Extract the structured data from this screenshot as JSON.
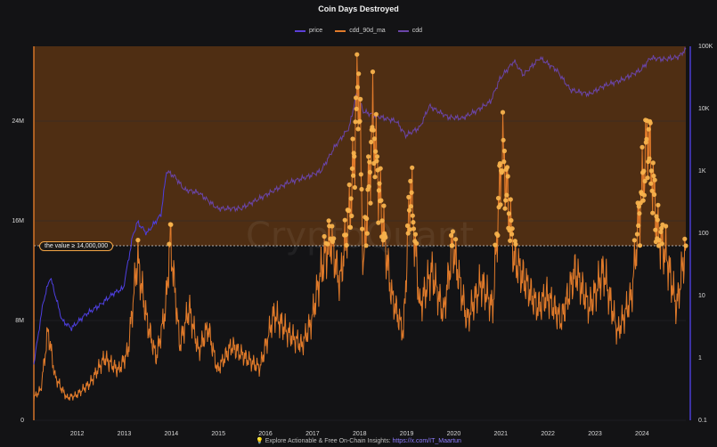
{
  "header": {
    "title": "Coin Days Destroyed"
  },
  "legend": [
    {
      "label": "price",
      "color": "#5b3fd8"
    },
    {
      "label": "cdd_90d_ma",
      "color": "#e07a2a"
    },
    {
      "label": "cdd",
      "color": "#6a45a8"
    }
  ],
  "watermark": "CryptoQuant",
  "threshold_label": "the value ≥ 14,000,000",
  "footer": {
    "icon": "💡",
    "text": "Explore Actionable & Free On-Chain Insights: ",
    "link": "https://x.com/IT_Maartun"
  },
  "colors": {
    "background": "#131315",
    "cdd_line": "#e07a2a",
    "highlight_fill": "#5a3413",
    "highlight_points": "#f7b24c",
    "price_line_early": "#4e3fe0",
    "price_line": "#6a45a8"
  },
  "chart_data": {
    "type": "line",
    "title": "Coin Days Destroyed",
    "x_ticks": [
      "2012",
      "2013",
      "2014",
      "2015",
      "2016",
      "2017",
      "2018",
      "2019",
      "2020",
      "2021",
      "2022",
      "2023",
      "2024"
    ],
    "xlim": [
      2011.1,
      2024.95
    ],
    "left_axis": {
      "ticks": [
        "0",
        "8M",
        "16M",
        "24M"
      ],
      "tick_values": [
        0,
        8000000,
        16000000,
        24000000
      ],
      "ylim": [
        0,
        30000000
      ]
    },
    "right_axis": {
      "scale": "log",
      "ticks": [
        "0.1",
        "1",
        "10",
        "100",
        "1K",
        "10K",
        "100K"
      ],
      "tick_values": [
        0.1,
        1,
        10,
        100,
        1000,
        10000,
        100000
      ],
      "ylim": [
        0.1,
        100000
      ]
    },
    "threshold": 14000000,
    "series": [
      {
        "name": "price",
        "axis": "right",
        "x": [
          2011.1,
          2011.3,
          2011.45,
          2011.7,
          2011.9,
          2012.2,
          2012.5,
          2012.8,
          2013.0,
          2013.2,
          2013.3,
          2013.5,
          2013.8,
          2013.92,
          2014.1,
          2014.3,
          2014.6,
          2015.0,
          2015.5,
          2016.0,
          2016.5,
          2016.9,
          2017.2,
          2017.5,
          2017.8,
          2017.96,
          2018.1,
          2018.4,
          2018.8,
          2019.0,
          2019.3,
          2019.5,
          2019.9,
          2020.2,
          2020.5,
          2020.8,
          2021.0,
          2021.3,
          2021.5,
          2021.85,
          2022.2,
          2022.5,
          2022.9,
          2023.2,
          2023.6,
          2024.0,
          2024.2,
          2024.5,
          2024.8,
          2024.95
        ],
        "values": [
          0.8,
          8,
          20,
          4,
          3,
          5,
          7,
          11,
          13,
          90,
          150,
          100,
          200,
          1000,
          800,
          500,
          450,
          250,
          250,
          400,
          650,
          800,
          1000,
          2500,
          5000,
          18000,
          9000,
          7500,
          6300,
          3700,
          5000,
          11000,
          7300,
          7000,
          9200,
          13000,
          30000,
          58000,
          35000,
          65000,
          42000,
          20000,
          17000,
          23000,
          29000,
          42000,
          65000,
          62000,
          68000,
          90000
        ]
      },
      {
        "name": "cdd_90d_ma",
        "axis": "left",
        "x": [
          2011.1,
          2011.25,
          2011.4,
          2011.55,
          2011.8,
          2012.0,
          2012.3,
          2012.6,
          2012.9,
          2013.1,
          2013.3,
          2013.5,
          2013.7,
          2013.9,
          2014.0,
          2014.2,
          2014.4,
          2014.6,
          2014.8,
          2015.0,
          2015.3,
          2015.6,
          2015.9,
          2016.2,
          2016.5,
          2016.8,
          2017.0,
          2017.2,
          2017.4,
          2017.6,
          2017.85,
          2018.0,
          2018.1,
          2018.3,
          2018.5,
          2018.7,
          2018.95,
          2019.1,
          2019.3,
          2019.55,
          2019.8,
          2020.0,
          2020.3,
          2020.6,
          2020.85,
          2021.05,
          2021.3,
          2021.55,
          2021.8,
          2022.0,
          2022.3,
          2022.6,
          2022.9,
          2023.2,
          2023.5,
          2023.8,
          2024.0,
          2024.15,
          2024.35,
          2024.55,
          2024.75,
          2024.95
        ],
        "values": [
          1800000,
          2500000,
          7200000,
          3500000,
          1800000,
          2000000,
          3000000,
          5000000,
          4000000,
          5500000,
          13000000,
          8000000,
          5000000,
          9000000,
          14500000,
          6000000,
          9000000,
          5500000,
          7500000,
          4000000,
          6000000,
          5000000,
          4200000,
          8500000,
          7000000,
          6000000,
          8000000,
          12000000,
          14500000,
          11000000,
          18000000,
          28000000,
          12000000,
          24000000,
          16000000,
          10000000,
          7000000,
          19000000,
          9000000,
          12000000,
          8500000,
          14000000,
          8000000,
          11000000,
          9000000,
          22000000,
          13000000,
          11000000,
          9000000,
          10000000,
          8000000,
          12000000,
          9000000,
          12000000,
          7000000,
          10000000,
          18000000,
          23000000,
          15000000,
          13000000,
          9000000,
          14000000
        ]
      }
    ]
  }
}
